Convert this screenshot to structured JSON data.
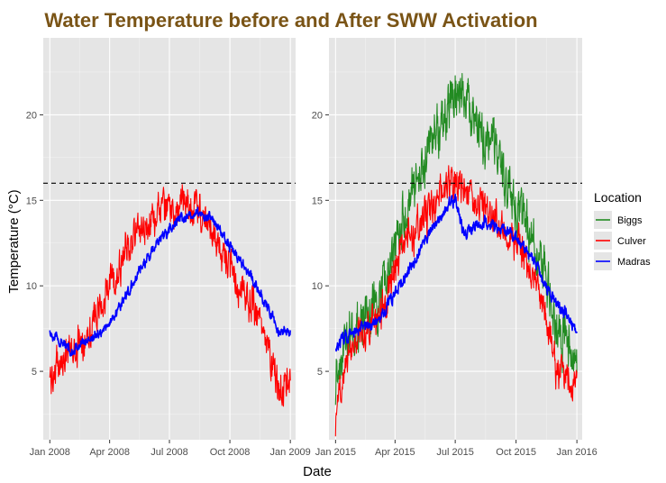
{
  "chart_data": {
    "type": "line",
    "title": "Water Temperature before and After SWW Activation",
    "title_color": "#7a5416",
    "xlabel": "Date",
    "ylabel": "Temperature (°C)",
    "ylim": [
      1,
      24.5
    ],
    "y_ticks": [
      5,
      10,
      15,
      20
    ],
    "reference_line": {
      "y": 16,
      "style": "dashed",
      "color": "#000000"
    },
    "panel_background": "#e5e5e5",
    "grid": true,
    "legend": {
      "title": "Location",
      "placement": "right",
      "entries": [
        {
          "name": "Biggs",
          "color": "#228b22"
        },
        {
          "name": "Culver",
          "color": "#ff0000"
        },
        {
          "name": "Madras",
          "color": "#0000ff"
        }
      ]
    },
    "panels": [
      {
        "xlim": [
          "2007-12-22",
          "2009-01-09"
        ],
        "x_ticks": [
          {
            "date": "2008-01-01",
            "label": "Jan 2008"
          },
          {
            "date": "2008-04-01",
            "label": "Apr 2008"
          },
          {
            "date": "2008-07-01",
            "label": "Jul 2008"
          },
          {
            "date": "2008-10-01",
            "label": "Oct 2008"
          },
          {
            "date": "2009-01-01",
            "label": "Jan 2009"
          }
        ],
        "series": [
          {
            "name": "Culver",
            "color": "#ff0000",
            "noise": 0.9,
            "x": [
              "2008-01-01",
              "2008-01-15",
              "2008-02-01",
              "2008-02-15",
              "2008-03-01",
              "2008-03-15",
              "2008-04-01",
              "2008-04-15",
              "2008-05-01",
              "2008-05-15",
              "2008-06-01",
              "2008-06-15",
              "2008-07-01",
              "2008-07-15",
              "2008-08-01",
              "2008-08-15",
              "2008-09-01",
              "2008-09-15",
              "2008-10-01",
              "2008-10-15",
              "2008-11-01",
              "2008-11-15",
              "2008-12-01",
              "2008-12-15",
              "2009-01-01"
            ],
            "y": [
              4.5,
              5.5,
              6.2,
              6.5,
              7.5,
              8.5,
              10.0,
              11.0,
              12.5,
              13.2,
              13.8,
              14.3,
              14.5,
              14.6,
              14.8,
              14.5,
              13.2,
              12.3,
              11.0,
              9.8,
              9.0,
              8.0,
              6.0,
              4.0,
              4.8
            ]
          },
          {
            "name": "Madras",
            "color": "#0000ff",
            "noise": 0.25,
            "x": [
              "2008-01-01",
              "2008-01-15",
              "2008-02-01",
              "2008-02-15",
              "2008-03-01",
              "2008-03-15",
              "2008-04-01",
              "2008-04-15",
              "2008-05-01",
              "2008-05-15",
              "2008-06-01",
              "2008-06-15",
              "2008-07-01",
              "2008-07-15",
              "2008-08-01",
              "2008-08-15",
              "2008-09-01",
              "2008-09-15",
              "2008-10-01",
              "2008-10-15",
              "2008-11-01",
              "2008-11-15",
              "2008-12-01",
              "2008-12-15",
              "2009-01-01"
            ],
            "y": [
              7.3,
              6.8,
              6.2,
              6.5,
              6.9,
              7.2,
              7.8,
              8.7,
              9.8,
              10.8,
              11.8,
              12.6,
              13.3,
              13.9,
              14.1,
              14.2,
              14.0,
              13.3,
              12.3,
              11.6,
              10.6,
              9.6,
              8.5,
              7.2,
              7.4
            ]
          }
        ]
      },
      {
        "xlim": [
          "2014-12-22",
          "2016-01-09"
        ],
        "x_ticks": [
          {
            "date": "2015-01-01",
            "label": "Jan 2015"
          },
          {
            "date": "2015-04-01",
            "label": "Apr 2015"
          },
          {
            "date": "2015-07-01",
            "label": "Jul 2015"
          },
          {
            "date": "2015-10-01",
            "label": "Oct 2015"
          },
          {
            "date": "2016-01-01",
            "label": "Jan 2016"
          }
        ],
        "series": [
          {
            "name": "Biggs",
            "color": "#228b22",
            "noise": 1.3,
            "x": [
              "2015-01-01",
              "2015-01-15",
              "2015-02-01",
              "2015-02-15",
              "2015-03-01",
              "2015-03-15",
              "2015-04-01",
              "2015-04-15",
              "2015-05-01",
              "2015-05-15",
              "2015-06-01",
              "2015-06-15",
              "2015-07-01",
              "2015-07-15",
              "2015-08-01",
              "2015-08-15",
              "2015-09-01",
              "2015-09-15",
              "2015-10-01",
              "2015-10-15",
              "2015-11-01",
              "2015-11-15",
              "2015-12-01",
              "2015-12-15",
              "2016-01-01"
            ],
            "y": [
              4.5,
              7.0,
              7.5,
              8.0,
              8.5,
              10.0,
              12.0,
              14.0,
              15.5,
              17.0,
              19.0,
              20.0,
              21.5,
              20.8,
              19.5,
              18.8,
              17.5,
              16.0,
              15.0,
              13.5,
              12.0,
              10.5,
              7.5,
              6.5,
              5.5
            ]
          },
          {
            "name": "Culver",
            "color": "#ff0000",
            "noise": 0.9,
            "x": [
              "2015-01-01",
              "2015-01-15",
              "2015-02-01",
              "2015-02-15",
              "2015-03-01",
              "2015-03-15",
              "2015-04-01",
              "2015-04-15",
              "2015-05-01",
              "2015-05-15",
              "2015-06-01",
              "2015-06-15",
              "2015-07-01",
              "2015-07-15",
              "2015-08-01",
              "2015-08-15",
              "2015-09-01",
              "2015-09-15",
              "2015-10-01",
              "2015-10-15",
              "2015-11-01",
              "2015-11-15",
              "2015-12-01",
              "2015-12-15",
              "2016-01-01"
            ],
            "y": [
              2.0,
              6.0,
              7.0,
              7.5,
              8.0,
              8.5,
              11.0,
              12.5,
              13.0,
              14.0,
              15.0,
              15.5,
              16.0,
              15.5,
              15.0,
              14.5,
              14.0,
              13.5,
              12.5,
              11.5,
              10.0,
              8.0,
              5.0,
              4.5,
              4.5
            ]
          },
          {
            "name": "Madras",
            "color": "#0000ff",
            "noise": 0.3,
            "x": [
              "2015-01-01",
              "2015-01-15",
              "2015-02-01",
              "2015-02-15",
              "2015-03-01",
              "2015-03-15",
              "2015-04-01",
              "2015-04-15",
              "2015-05-01",
              "2015-05-15",
              "2015-06-01",
              "2015-06-15",
              "2015-07-01",
              "2015-07-15",
              "2015-08-01",
              "2015-08-15",
              "2015-09-01",
              "2015-09-15",
              "2015-10-01",
              "2015-10-15",
              "2015-11-01",
              "2015-11-15",
              "2015-12-01",
              "2015-12-15",
              "2016-01-01"
            ],
            "y": [
              6.5,
              7.0,
              7.3,
              7.6,
              7.8,
              8.5,
              9.5,
              10.5,
              11.5,
              12.5,
              13.5,
              14.3,
              15.2,
              13.0,
              13.5,
              13.8,
              13.4,
              13.2,
              12.8,
              12.2,
              11.2,
              10.0,
              9.0,
              8.3,
              7.3
            ]
          }
        ]
      }
    ]
  }
}
